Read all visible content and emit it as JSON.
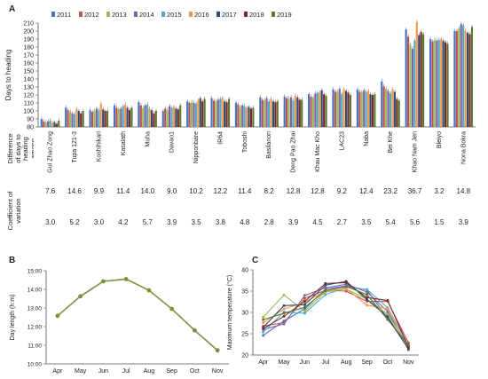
{
  "panels": {
    "a": "A",
    "b": "B",
    "c": "C"
  },
  "chart_data": [
    {
      "type": "bar",
      "panel": "A",
      "ylabel": "Days to heading",
      "ylim": [
        80,
        210
      ],
      "yticks": [
        80,
        90,
        100,
        110,
        120,
        130,
        140,
        150,
        160,
        170,
        180,
        190,
        200,
        210
      ],
      "grid": false,
      "legend_placement": "top",
      "colors": [
        "#4472c4",
        "#c0504d",
        "#9bbb59",
        "#8064a2",
        "#4bacc6",
        "#f79646",
        "#2c4d75",
        "#772c2a",
        "#5f7530"
      ],
      "categories": [
        "Gui Zhao Zong",
        "Tupa 121-3",
        "Koshihikari",
        "Kasalath",
        "Muha",
        "Davao1",
        "Nipponbare",
        "IR64",
        "Toboshi",
        "Basilanon",
        "Deng Pao Zhai",
        "Khau Mac Kho",
        "LAC23",
        "Naba",
        "Bei Khe",
        "Khao Nam Jen",
        "Bleiyo",
        "Nona Bokra"
      ],
      "series": [
        {
          "name": "2011",
          "values": [
            90,
            104,
            101,
            107,
            111,
            100,
            112,
            116,
            110,
            117,
            118,
            121,
            127,
            127,
            137,
            202,
            190,
            200
          ]
        },
        {
          "name": "2012",
          "values": [
            87,
            101,
            99,
            104,
            107,
            103,
            110,
            113,
            108,
            114,
            116,
            118,
            124,
            124,
            131,
            193,
            187,
            200
          ]
        },
        {
          "name": "2013",
          "values": [
            86,
            99,
            100,
            102,
            104,
            101,
            111,
            112,
            105,
            113,
            115,
            117,
            124,
            123,
            128,
            183,
            189,
            203
          ]
        },
        {
          "name": "2014",
          "values": [
            87,
            97,
            103,
            103,
            107,
            106,
            110,
            114,
            107,
            116,
            117,
            122,
            128,
            126,
            125,
            178,
            188,
            209
          ]
        },
        {
          "name": "2015",
          "values": [
            88,
            96,
            101,
            106,
            108,
            104,
            109,
            115,
            106,
            112,
            113,
            123,
            121,
            124,
            122,
            188,
            189,
            207
          ]
        },
        {
          "name": "2016",
          "values": [
            85,
            102,
            109,
            108,
            103,
            105,
            113,
            116,
            104,
            115,
            119,
            123,
            127,
            125,
            127,
            211,
            190,
            200
          ]
        },
        {
          "name": "2017",
          "values": [
            86,
            100,
            102,
            104,
            101,
            103,
            116,
            112,
            105,
            112,
            117,
            126,
            125,
            121,
            124,
            195,
            188,
            198
          ]
        },
        {
          "name": "2018",
          "values": [
            84,
            97,
            100,
            101,
            97,
            102,
            112,
            111,
            103,
            111,
            114,
            121,
            123,
            120,
            115,
            199,
            186,
            196
          ]
        },
        {
          "name": "2019",
          "values": [
            88,
            100,
            100,
            104,
            100,
            107,
            115,
            115,
            104,
            112,
            114,
            119,
            120,
            121,
            113,
            196,
            184,
            205
          ]
        }
      ]
    },
    {
      "type": "table",
      "panel": "A",
      "rows": [
        {
          "label": "Difference of days to heading among years",
          "values": [
            "7.6",
            "14.6",
            "9.9",
            "11.4",
            "14.0",
            "9.0",
            "10.2",
            "12.2",
            "11.4",
            "8.2",
            "12.8",
            "12.8",
            "9.2",
            "12.4",
            "23.2",
            "36.7",
            "3.2",
            "14.8"
          ]
        },
        {
          "label": "Coefficient of variation",
          "values": [
            "3.0",
            "5.2",
            "3.0",
            "4.2",
            "5.7",
            "3.9",
            "3.5",
            "3.8",
            "4.8",
            "2.8",
            "3.9",
            "4.5",
            "2.7",
            "3.5",
            "5.4",
            "5.6",
            "1.5",
            "3.9"
          ]
        }
      ]
    },
    {
      "type": "line",
      "panel": "B",
      "ylabel": "Day length (h:m)",
      "yticks": [
        "10:00",
        "11:00",
        "12:00",
        "13:00",
        "14:00",
        "15:00"
      ],
      "ylim": [
        10,
        15
      ],
      "x": [
        "Apr",
        "May",
        "Jun",
        "Jul",
        "Aug",
        "Sep",
        "Oct",
        "Nov"
      ],
      "values": [
        12.58,
        13.63,
        14.43,
        14.55,
        13.95,
        12.95,
        11.8,
        10.73
      ],
      "color": "#77933c",
      "grid": false
    },
    {
      "type": "line",
      "panel": "C",
      "ylabel": "Maximum temperature (°C)",
      "ylim": [
        20,
        40
      ],
      "yticks": [
        20,
        25,
        30,
        35,
        40
      ],
      "x": [
        "Apr",
        "May",
        "Jun",
        "Jul",
        "Aug",
        "Sep",
        "Oct",
        "Nov"
      ],
      "grid": false,
      "series": [
        {
          "color": "#4472c4",
          "values": [
            24.6,
            28.0,
            30.8,
            35.5,
            36.2,
            35.3,
            28.6,
            21.5
          ]
        },
        {
          "color": "#c0504d",
          "values": [
            26.8,
            27.6,
            33.3,
            35.2,
            35.0,
            32.6,
            32.6,
            22.9
          ]
        },
        {
          "color": "#9bbb59",
          "values": [
            28.9,
            34.1,
            30.3,
            34.8,
            35.5,
            33.1,
            29.6,
            22.1
          ]
        },
        {
          "color": "#8064a2",
          "values": [
            26.0,
            27.3,
            34.0,
            35.8,
            36.6,
            34.8,
            30.2,
            21.8
          ]
        },
        {
          "color": "#4bacc6",
          "values": [
            25.4,
            30.1,
            29.8,
            34.2,
            35.9,
            35.4,
            31.1,
            22.3
          ]
        },
        {
          "color": "#f79646",
          "values": [
            27.6,
            30.8,
            32.4,
            35.0,
            35.6,
            31.7,
            30.9,
            21.2
          ]
        },
        {
          "color": "#2c4d75",
          "values": [
            26.5,
            31.6,
            31.8,
            36.4,
            37.3,
            33.0,
            29.0,
            21.4
          ]
        },
        {
          "color": "#772c2a",
          "values": [
            26.2,
            29.1,
            32.6,
            36.8,
            37.0,
            33.5,
            32.8,
            21.9
          ]
        },
        {
          "color": "#5f7530",
          "values": [
            28.3,
            29.8,
            31.2,
            35.1,
            36.1,
            34.2,
            28.3,
            22.4
          ]
        }
      ]
    }
  ]
}
